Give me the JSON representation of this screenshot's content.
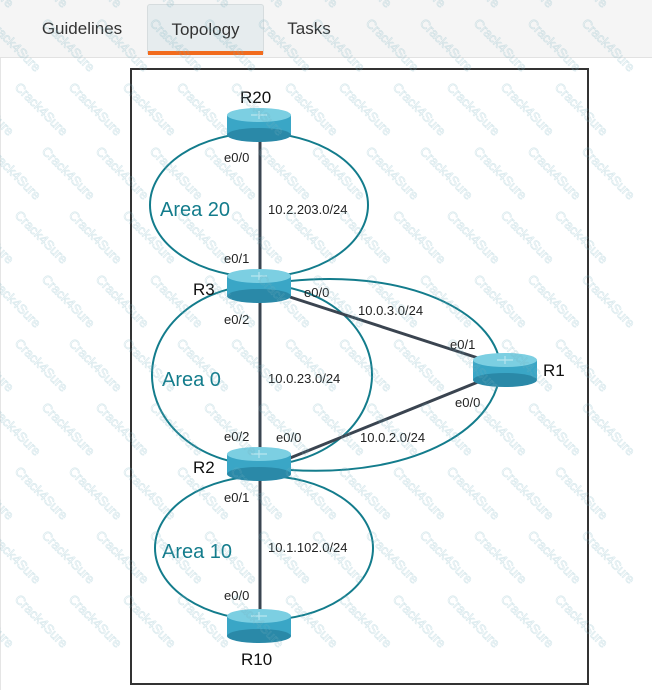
{
  "tabs": [
    {
      "label": "Guidelines",
      "active": false
    },
    {
      "label": "Topology",
      "active": true
    },
    {
      "label": "Tasks",
      "active": false
    }
  ],
  "accent_color": "#f26b1d",
  "area_color": "#137c8c",
  "router_color": "#3aa6c6",
  "watermark": "Crack4Sure",
  "topology": {
    "routers": {
      "r20": "R20",
      "r3": "R3",
      "r2": "R2",
      "r10": "R10",
      "r1": "R1"
    },
    "areas": {
      "area20": "Area 20",
      "area0": "Area 0",
      "area10": "Area 10"
    },
    "links": {
      "r20_r3": {
        "subnet": "10.2.203.0/24",
        "r20_if": "e0/0",
        "r3_if": "e0/1"
      },
      "r3_r2": {
        "subnet": "10.0.23.0/24",
        "r3_if": "e0/2",
        "r2_if": "e0/2"
      },
      "r3_r1": {
        "subnet": "10.0.3.0/24",
        "r3_if": "e0/0",
        "r1_if": "e0/1"
      },
      "r2_r1": {
        "subnet": "10.0.2.0/24",
        "r2_if": "e0/0",
        "r1_if": "e0/0"
      },
      "r2_r10": {
        "subnet": "10.1.102.0/24",
        "r2_if": "e0/1",
        "r10_if": "e0/0"
      }
    }
  }
}
